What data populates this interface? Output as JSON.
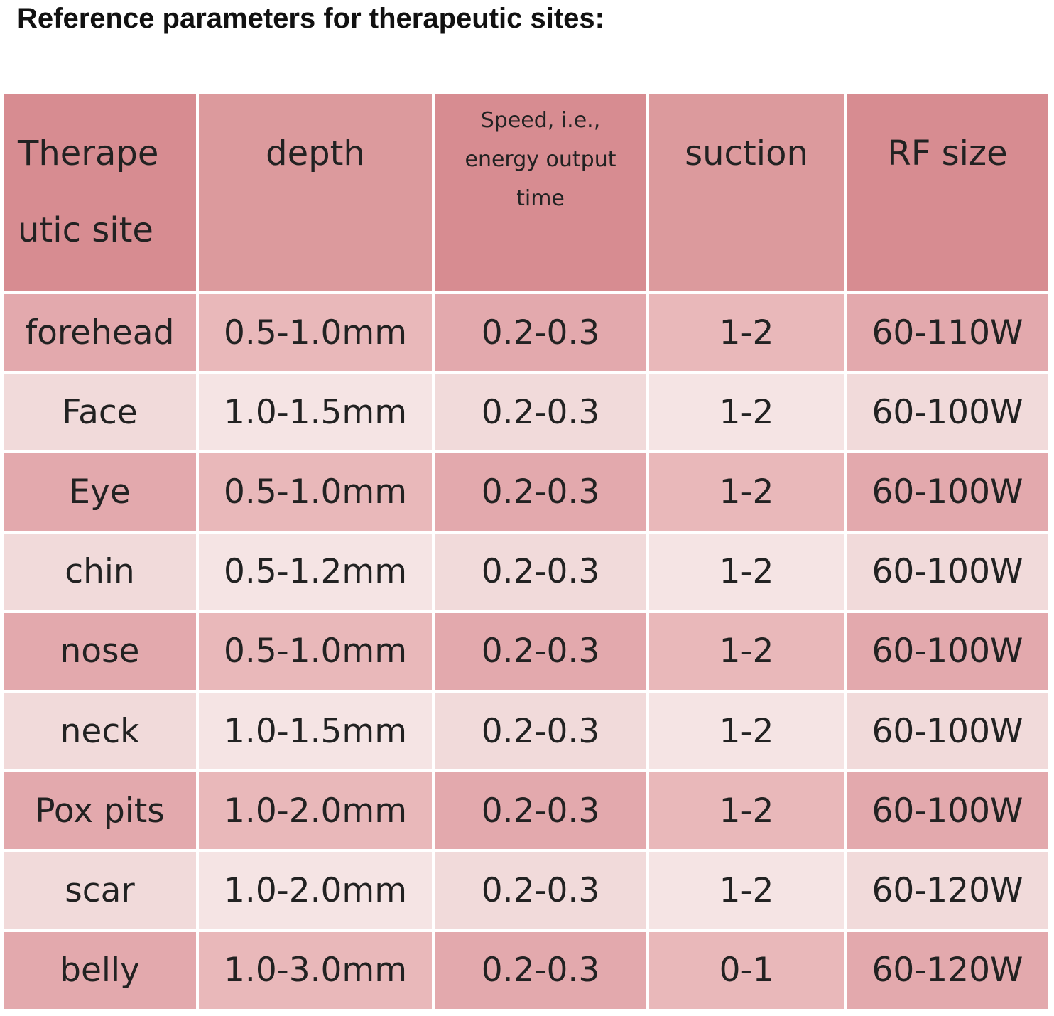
{
  "title": "Reference parameters for therapeutic sites:",
  "table": {
    "header": [
      [
        "Therape",
        "utic site"
      ],
      [
        "depth"
      ],
      [
        "Speed, i.e.,",
        "energy output",
        "time"
      ],
      [
        "suction"
      ],
      [
        "RF size"
      ]
    ],
    "rows": [
      [
        "forehead",
        "0.5-1.0mm",
        "0.2-0.3",
        "1-2",
        "60-110W"
      ],
      [
        "Face",
        "1.0-1.5mm",
        "0.2-0.3",
        "1-2",
        "60-100W"
      ],
      [
        "Eye",
        "0.5-1.0mm",
        "0.2-0.3",
        "1-2",
        "60-100W"
      ],
      [
        "chin",
        "0.5-1.2mm",
        "0.2-0.3",
        "1-2",
        "60-100W"
      ],
      [
        "nose",
        "0.5-1.0mm",
        "0.2-0.3",
        "1-2",
        "60-100W"
      ],
      [
        "neck",
        "1.0-1.5mm",
        "0.2-0.3",
        "1-2",
        "60-100W"
      ],
      [
        "Pox pits",
        "1.0-2.0mm",
        "0.2-0.3",
        "1-2",
        "60-100W"
      ],
      [
        "scar",
        "1.0-2.0mm",
        "0.2-0.3",
        "1-2",
        "60-120W"
      ],
      [
        "belly",
        "1.0-3.0mm",
        "0.2-0.3",
        "0-1",
        "60-120W"
      ]
    ]
  }
}
